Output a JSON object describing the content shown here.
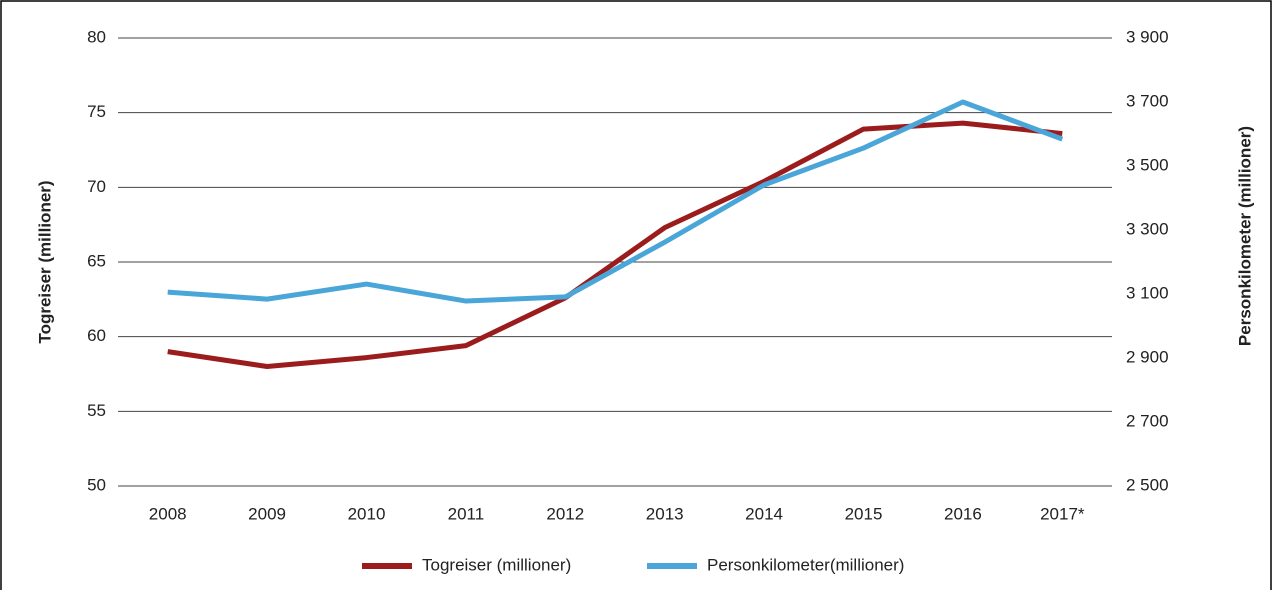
{
  "chart_data": {
    "type": "line",
    "categories": [
      "2008",
      "2009",
      "2010",
      "2011",
      "2012",
      "2013",
      "2014",
      "2015",
      "2016",
      "2017*"
    ],
    "series": [
      {
        "name": "Togreiser (millioner)",
        "color": "#9b1c1c",
        "values": [
          59.0,
          58.0,
          58.6,
          59.4,
          62.6,
          67.3,
          70.4,
          73.9,
          74.3,
          73.6
        ]
      },
      {
        "name": "Personkilometer(millioner)",
        "color": "#4aa6d9",
        "axis": "y2",
        "values": [
          3106,
          3084,
          3131,
          3078,
          3091,
          3262,
          3441,
          3556,
          3700,
          3584
        ]
      }
    ],
    "ylabel": "Togreiser (millioner)",
    "y2label": "Personkilometer (millioner)",
    "ylim": [
      50,
      80
    ],
    "yticks": [
      50,
      55,
      60,
      65,
      70,
      75,
      80
    ],
    "y2lim": [
      2500,
      3900
    ],
    "y2ticks": [
      {
        "value": 2500,
        "label": "2 500"
      },
      {
        "value": 2700,
        "label": "2 700"
      },
      {
        "value": 2900,
        "label": "2 900"
      },
      {
        "value": 3100,
        "label": "3 100"
      },
      {
        "value": 3300,
        "label": "3 300"
      },
      {
        "value": 3500,
        "label": "3 500"
      },
      {
        "value": 3700,
        "label": "3 700"
      },
      {
        "value": 3900,
        "label": "3 900"
      }
    ],
    "grid": true,
    "legend": "bottom"
  }
}
